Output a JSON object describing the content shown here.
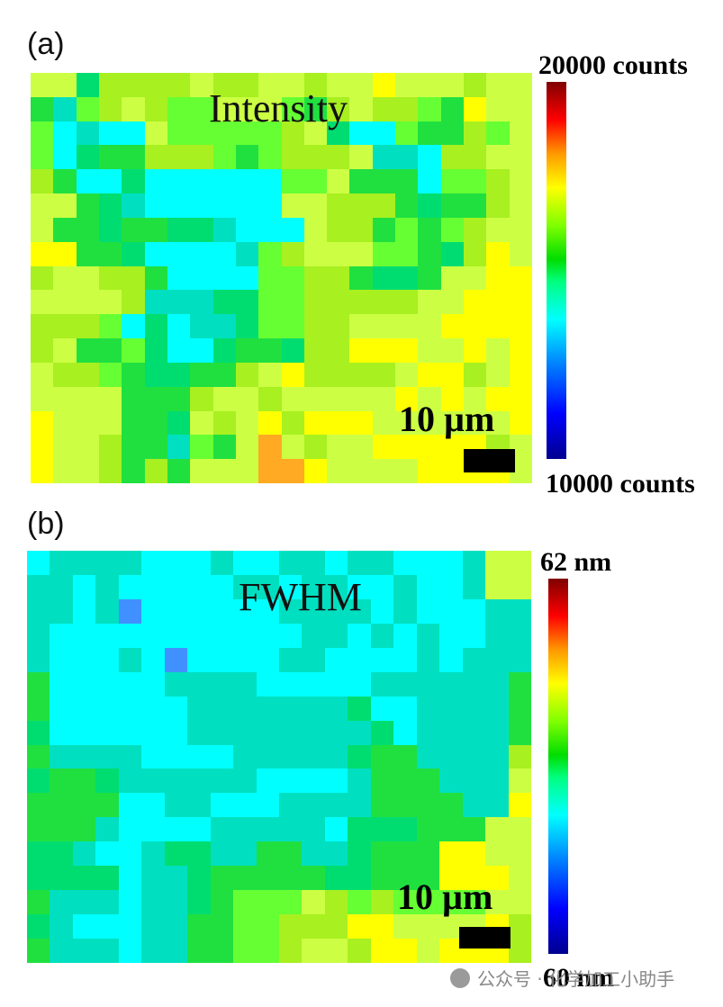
{
  "panels": [
    {
      "label": "(a)",
      "title": "Intensity",
      "scale_bar": "10 µm",
      "colorbar": {
        "max_label": "20000 counts",
        "min_label": "10000 counts"
      }
    },
    {
      "label": "(b)",
      "title": "FWHM",
      "scale_bar": "10 µm",
      "colorbar": {
        "max_label": "62 nm",
        "min_label": "60 nm"
      }
    }
  ],
  "watermark": "公众号 · 化学加工小助手",
  "colors": {
    "palette": [
      "#00ffff",
      "#00e0c0",
      "#00dd70",
      "#20e040",
      "#66ff33",
      "#a8f020",
      "#ccff44",
      "#ffff00",
      "#ffaa22",
      "#4090ff",
      "#1030e0"
    ],
    "palette_note": "index 0-8 increasing, 9-10 low outliers"
  },
  "chart_data": [
    {
      "type": "heatmap",
      "title": "Intensity",
      "units": "counts",
      "range": [
        10000,
        20000
      ],
      "colormap": "jet",
      "grid": [
        "6625555655665667666566",
        "3145654466643565543766",
        "4010064444456200433546",
        "4023355543455561105566",
        "5300200000044633304456",
        "6632100000066555323356",
        "6332332210006553434566",
        "7733200001456664432576",
        "5665530000445532236677",
        "6666511122445555566777",
        "5554020112445566667777",
        "5633420023325577766767",
        "6554322335675555677567",
        "6666333566566666767677",
        "7666332656757776666667",
        "7665331436865667777756",
        "7665353666887666677776"
      ]
    },
    {
      "type": "heatmap",
      "title": "FWHM",
      "units": "nm",
      "range": [
        60,
        62
      ],
      "colormap": "jet",
      "grid": [
        "0111100010011011000166",
        "1101000001101100100166",
        "1101900000011110100011",
        "1000000000001101010011",
        "1000109000011000010111",
        "3000001111000001111113",
        "3000000111111120011113",
        "2000000111111112011113",
        "3111100001111123311115",
        "2332111111000013331116",
        "3333001100011113333117",
        "3331000011111022233366",
        "2210012211331123337766",
        "2222011233333223337776",
        "3111011234446545444466",
        "2100011334455577666675",
        "3111011334456657767775"
      ]
    }
  ]
}
